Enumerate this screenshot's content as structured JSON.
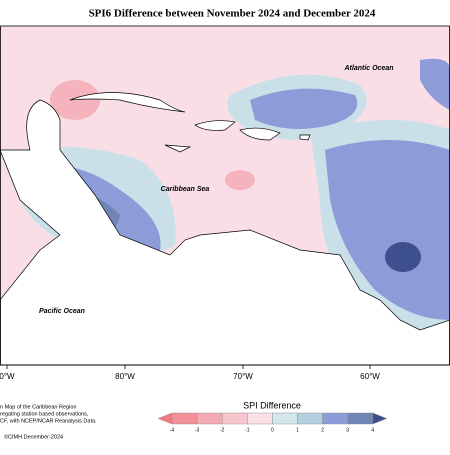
{
  "title": "SPI6 Difference between November 2024 and December 2024",
  "labels": {
    "atlantic": "Atlantic Ocean",
    "caribbean": "Caribbean Sea",
    "pacific": "Pacific Ocean"
  },
  "longitudes": [
    "0°W",
    "80°W",
    "70°W",
    "60°W"
  ],
  "caption": [
    "n Map of the Caribbean Region",
    "regating station based observations,",
    "CF, with NCEP/NCAR Reanalysis Data."
  ],
  "copyright": "©CIMH December-2024",
  "legend": {
    "title": "SPI Difference",
    "ticks": [
      -4,
      -3,
      -2,
      -1,
      0,
      1,
      2,
      3,
      4
    ],
    "colors": [
      "#f07c83",
      "#f38f97",
      "#f5aab3",
      "#f8c6ce",
      "#fbe0e6",
      "#d3e6ec",
      "#b3cfe0",
      "#8d9bd9",
      "#6f86b5",
      "#3e4f8e"
    ]
  }
}
